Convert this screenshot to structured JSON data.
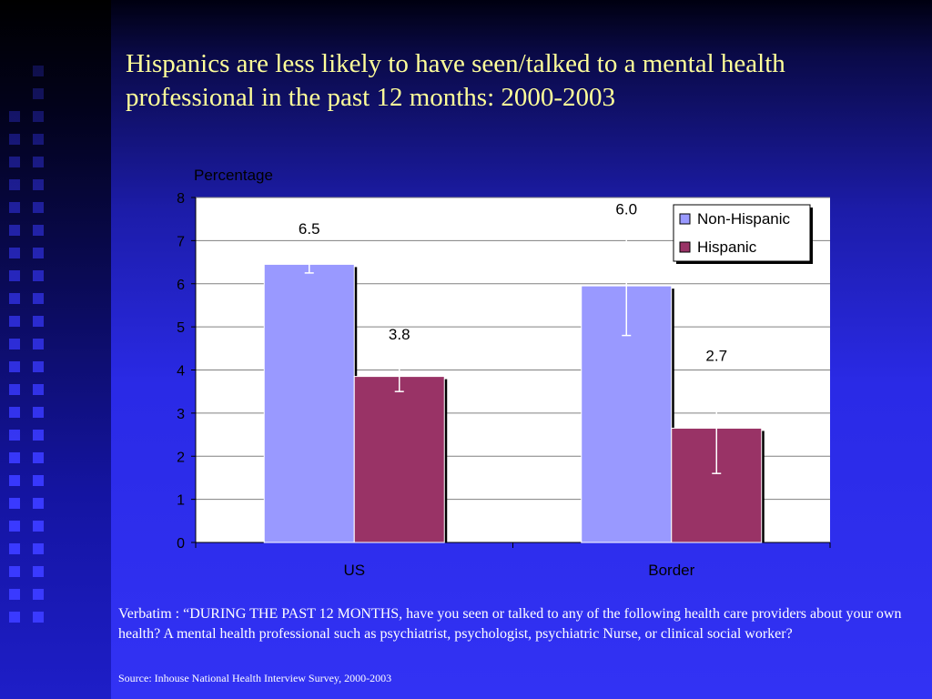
{
  "slide": {
    "title": "Hispanics are less likely to have seen/talked to a mental health professional in the past 12 months: 2000-2003",
    "verbatim": "Verbatim : “DURING THE PAST 12 MONTHS, have you seen or talked to any of the following health care providers about your own health? A mental health professional such as psychiatrist, psychologist, psychiatric Nurse, or clinical social worker?",
    "source": "Source: Inhouse National Health Interview Survey, 2000-2003"
  },
  "colors": {
    "non_hispanic": "#9999ff",
    "hispanic": "#993366",
    "plot_bg": "#ffffff",
    "title": "#ffff99",
    "strip_square": "#3a3aff"
  },
  "chart_data": {
    "type": "bar",
    "title": "",
    "ylabel": "Percentage",
    "xlabel": "",
    "categories": [
      "US",
      "Border"
    ],
    "ylim": [
      0,
      8
    ],
    "yticks": [
      0,
      1,
      2,
      3,
      4,
      5,
      6,
      7,
      8
    ],
    "grid": true,
    "legend": "top-right",
    "series": [
      {
        "name": "Non-Hispanic",
        "values": [
          6.45,
          5.95
        ],
        "labels": [
          "6.5",
          "6.0"
        ],
        "error": [
          [
            6.25,
            6.65
          ],
          [
            4.8,
            7.1
          ]
        ]
      },
      {
        "name": "Hispanic",
        "values": [
          3.85,
          2.65
        ],
        "labels": [
          "3.8",
          "2.7"
        ],
        "error": [
          [
            3.5,
            4.2
          ],
          [
            1.6,
            3.7
          ]
        ]
      }
    ]
  }
}
